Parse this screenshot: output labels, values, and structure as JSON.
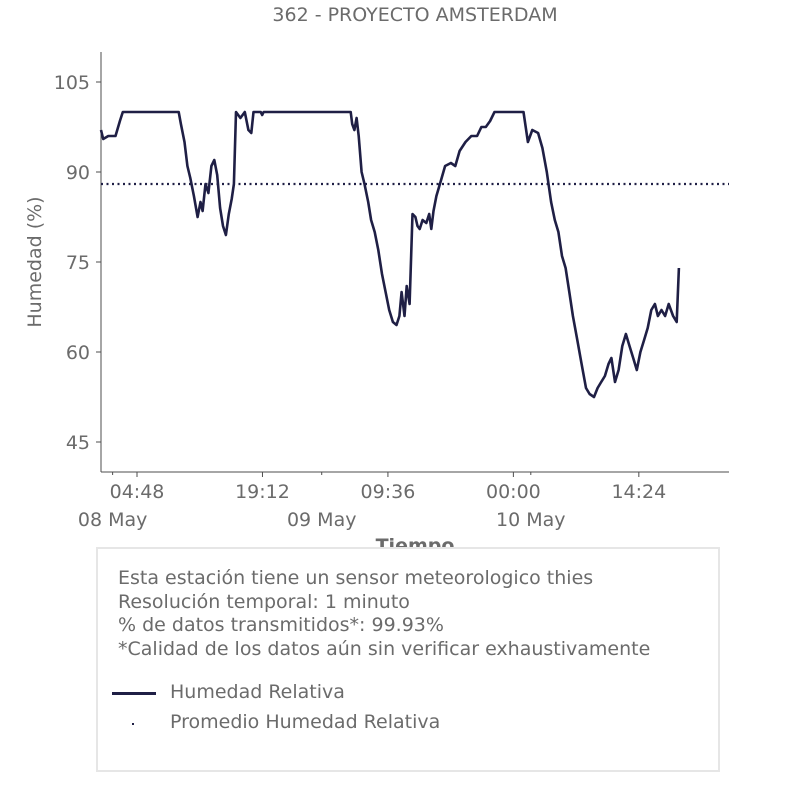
{
  "chart_data": {
    "type": "line",
    "title": "362 - PROYECTO AMSTERDAM",
    "xlabel": "Tiempo",
    "ylabel": "Humedad (%)",
    "ylim": [
      40,
      110
    ],
    "yticks": [
      45,
      60,
      75,
      90,
      105
    ],
    "xlim": [
      "2023-05-08T00:40",
      "2023-05-11T00:45"
    ],
    "xticks": [
      {
        "t": "2023-05-08T04:48",
        "label": "04:48"
      },
      {
        "t": "2023-05-08T19:12",
        "label": "19:12"
      },
      {
        "t": "2023-05-09T09:36",
        "label": "09:36"
      },
      {
        "t": "2023-05-10T00:00",
        "label": "00:00"
      },
      {
        "t": "2023-05-10T14:24",
        "label": "14:24"
      }
    ],
    "date_labels": [
      {
        "t": "2023-05-08T02:00",
        "label": "08 May"
      },
      {
        "t": "2023-05-09T02:00",
        "label": "09 May"
      },
      {
        "t": "2023-05-10T02:00",
        "label": "10 May"
      }
    ],
    "grid": false,
    "legend_position": "bottom",
    "series": [
      {
        "name": "Humedad Relativa",
        "color": "#1f1f45",
        "style": "solid",
        "points": [
          [
            "2023-05-08T00:40",
            97
          ],
          [
            "2023-05-08T00:55",
            95.5
          ],
          [
            "2023-05-08T01:30",
            96
          ],
          [
            "2023-05-08T02:20",
            96
          ],
          [
            "2023-05-08T02:50",
            98.5
          ],
          [
            "2023-05-08T03:10",
            100
          ],
          [
            "2023-05-08T05:00",
            100
          ],
          [
            "2023-05-08T07:00",
            100
          ],
          [
            "2023-05-08T09:35",
            100
          ],
          [
            "2023-05-08T09:50",
            98
          ],
          [
            "2023-05-08T10:15",
            95
          ],
          [
            "2023-05-08T10:35",
            91
          ],
          [
            "2023-05-08T10:55",
            89
          ],
          [
            "2023-05-08T11:20",
            86
          ],
          [
            "2023-05-08T11:45",
            82.5
          ],
          [
            "2023-05-08T12:05",
            85
          ],
          [
            "2023-05-08T12:20",
            83.5
          ],
          [
            "2023-05-08T12:40",
            88
          ],
          [
            "2023-05-08T13:00",
            86.5
          ],
          [
            "2023-05-08T13:20",
            91
          ],
          [
            "2023-05-08T13:40",
            92
          ],
          [
            "2023-05-08T14:00",
            89.5
          ],
          [
            "2023-05-08T14:20",
            84
          ],
          [
            "2023-05-08T14:40",
            81
          ],
          [
            "2023-05-08T15:00",
            79.5
          ],
          [
            "2023-05-08T15:20",
            83
          ],
          [
            "2023-05-08T15:40",
            85.5
          ],
          [
            "2023-05-08T15:55",
            88
          ],
          [
            "2023-05-08T16:10",
            100
          ],
          [
            "2023-05-08T16:40",
            99
          ],
          [
            "2023-05-08T17:10",
            100
          ],
          [
            "2023-05-08T17:35",
            97
          ],
          [
            "2023-05-08T17:55",
            96.5
          ],
          [
            "2023-05-08T18:10",
            100
          ],
          [
            "2023-05-08T19:00",
            100
          ],
          [
            "2023-05-08T19:10",
            99.5
          ],
          [
            "2023-05-08T19:20",
            100
          ],
          [
            "2023-05-08T22:00",
            100
          ],
          [
            "2023-05-09T02:00",
            100
          ],
          [
            "2023-05-09T05:20",
            100
          ],
          [
            "2023-05-09T05:30",
            98
          ],
          [
            "2023-05-09T05:45",
            97
          ],
          [
            "2023-05-09T06:00",
            99
          ],
          [
            "2023-05-09T06:15",
            96
          ],
          [
            "2023-05-09T06:35",
            90
          ],
          [
            "2023-05-09T06:55",
            88
          ],
          [
            "2023-05-09T07:20",
            85
          ],
          [
            "2023-05-09T07:40",
            82
          ],
          [
            "2023-05-09T08:05",
            80
          ],
          [
            "2023-05-09T08:30",
            77
          ],
          [
            "2023-05-09T08:55",
            73
          ],
          [
            "2023-05-09T09:20",
            70
          ],
          [
            "2023-05-09T09:45",
            67
          ],
          [
            "2023-05-09T10:10",
            65
          ],
          [
            "2023-05-09T10:35",
            64.5
          ],
          [
            "2023-05-09T10:55",
            66
          ],
          [
            "2023-05-09T11:10",
            70
          ],
          [
            "2023-05-09T11:30",
            66
          ],
          [
            "2023-05-09T11:45",
            71
          ],
          [
            "2023-05-09T12:05",
            68
          ],
          [
            "2023-05-09T12:25",
            83
          ],
          [
            "2023-05-09T12:45",
            82.5
          ],
          [
            "2023-05-09T13:00",
            81
          ],
          [
            "2023-05-09T13:15",
            80.5
          ],
          [
            "2023-05-09T13:35",
            82
          ],
          [
            "2023-05-09T14:00",
            81.5
          ],
          [
            "2023-05-09T14:20",
            83
          ],
          [
            "2023-05-09T14:35",
            80.5
          ],
          [
            "2023-05-09T14:50",
            83.5
          ],
          [
            "2023-05-09T15:10",
            86
          ],
          [
            "2023-05-09T15:40",
            88.5
          ],
          [
            "2023-05-09T16:10",
            91
          ],
          [
            "2023-05-09T16:50",
            91.5
          ],
          [
            "2023-05-09T17:20",
            91
          ],
          [
            "2023-05-09T17:50",
            93.5
          ],
          [
            "2023-05-09T18:30",
            95
          ],
          [
            "2023-05-09T19:10",
            96
          ],
          [
            "2023-05-09T19:50",
            96
          ],
          [
            "2023-05-09T20:20",
            97.5
          ],
          [
            "2023-05-09T20:50",
            97.5
          ],
          [
            "2023-05-09T21:20",
            98.5
          ],
          [
            "2023-05-09T21:50",
            100
          ],
          [
            "2023-05-09T22:30",
            100
          ],
          [
            "2023-05-10T00:30",
            100
          ],
          [
            "2023-05-10T01:10",
            100
          ],
          [
            "2023-05-10T01:40",
            95
          ],
          [
            "2023-05-10T02:10",
            97
          ],
          [
            "2023-05-10T02:50",
            96.5
          ],
          [
            "2023-05-10T03:20",
            94
          ],
          [
            "2023-05-10T03:50",
            90
          ],
          [
            "2023-05-10T04:20",
            85
          ],
          [
            "2023-05-10T04:45",
            82
          ],
          [
            "2023-05-10T05:10",
            80
          ],
          [
            "2023-05-10T05:35",
            76
          ],
          [
            "2023-05-10T06:00",
            74
          ],
          [
            "2023-05-10T06:25",
            70
          ],
          [
            "2023-05-10T06:50",
            66
          ],
          [
            "2023-05-10T07:20",
            62
          ],
          [
            "2023-05-10T07:50",
            58
          ],
          [
            "2023-05-10T08:20",
            54
          ],
          [
            "2023-05-10T08:45",
            53
          ],
          [
            "2023-05-10T09:15",
            52.5
          ],
          [
            "2023-05-10T09:40",
            54
          ],
          [
            "2023-05-10T10:05",
            55
          ],
          [
            "2023-05-10T10:30",
            56
          ],
          [
            "2023-05-10T10:55",
            58
          ],
          [
            "2023-05-10T11:15",
            59
          ],
          [
            "2023-05-10T11:40",
            55
          ],
          [
            "2023-05-10T12:05",
            57
          ],
          [
            "2023-05-10T12:30",
            61
          ],
          [
            "2023-05-10T12:55",
            63
          ],
          [
            "2023-05-10T13:20",
            61
          ],
          [
            "2023-05-10T13:45",
            59
          ],
          [
            "2023-05-10T14:10",
            57
          ],
          [
            "2023-05-10T14:35",
            60
          ],
          [
            "2023-05-10T15:00",
            62
          ],
          [
            "2023-05-10T15:25",
            64
          ],
          [
            "2023-05-10T15:50",
            67
          ],
          [
            "2023-05-10T16:15",
            68
          ],
          [
            "2023-05-10T16:35",
            66
          ],
          [
            "2023-05-10T17:00",
            67
          ],
          [
            "2023-05-10T17:25",
            66
          ],
          [
            "2023-05-10T17:50",
            68
          ],
          [
            "2023-05-10T18:20",
            66
          ],
          [
            "2023-05-10T18:45",
            65
          ],
          [
            "2023-05-10T19:00",
            74
          ]
        ]
      },
      {
        "name": "Promedio Humedad Relativa",
        "color": "#1f1f45",
        "style": "dotted",
        "value": 88
      }
    ]
  },
  "info_box": {
    "lines": [
      "Esta estación tiene un sensor meteorologico thies",
      "Resolución temporal: 1 minuto",
      "% de datos transmitidos*: 99.93%",
      "*Calidad de los datos aún sin verificar exhaustivamente"
    ]
  },
  "legend": {
    "items": [
      "Humedad Relativa",
      "Promedio Humedad Relativa"
    ]
  }
}
